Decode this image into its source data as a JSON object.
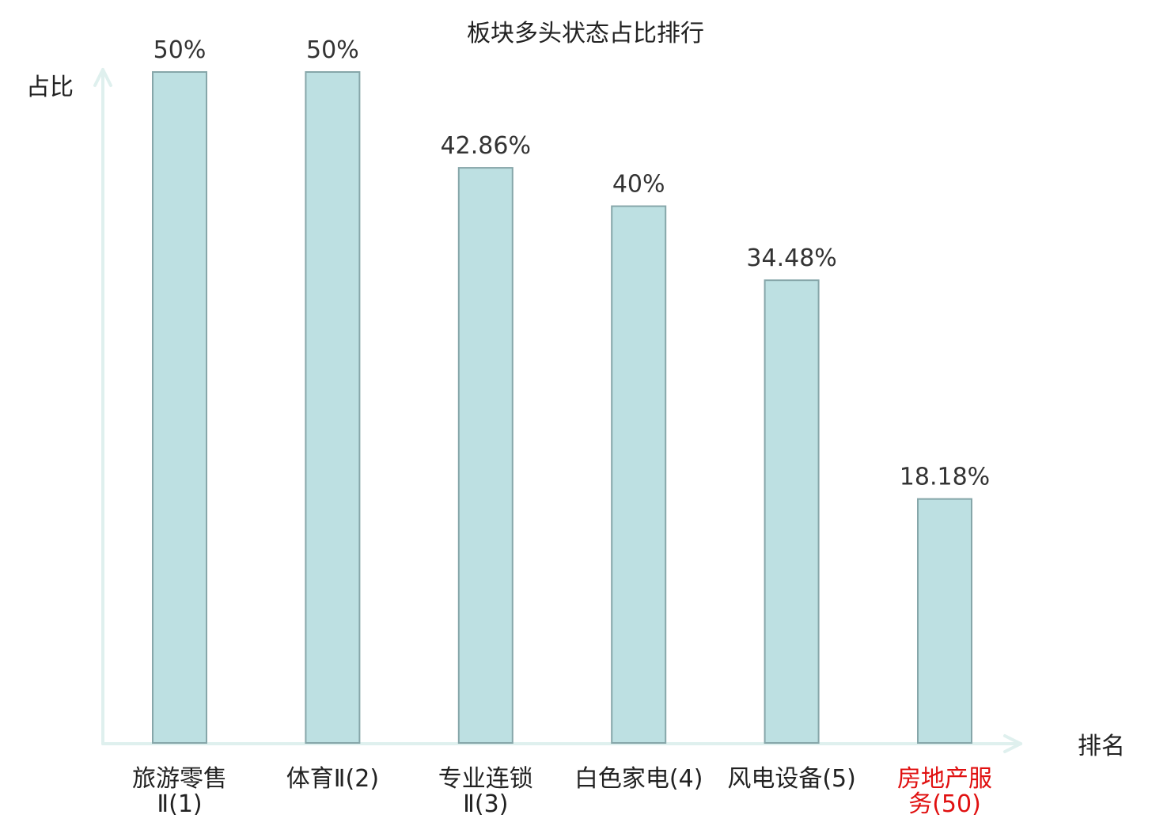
{
  "chart_data": {
    "type": "bar",
    "title": "板块多头状态占比排行",
    "ylabel": "占比",
    "xlabel": "排名",
    "categories": [
      [
        "旅游零售",
        "Ⅱ(1)"
      ],
      [
        "体育Ⅱ(2)"
      ],
      [
        "专业连锁",
        "Ⅱ(3)"
      ],
      [
        "白色家电(4)"
      ],
      [
        "风电设备(5)"
      ],
      [
        "房地产服",
        "务(50)"
      ]
    ],
    "values": [
      50,
      50,
      42.86,
      40,
      34.48,
      18.18
    ],
    "value_labels": [
      "50%",
      "50%",
      "42.86%",
      "40%",
      "34.48%",
      "18.18%"
    ],
    "highlight_index": 5,
    "ylim": [
      0,
      50
    ],
    "grid": false,
    "colors": {
      "bar_fill": "#bde0e2",
      "bar_stroke": "#86a6a9",
      "axis": "#dff0ee",
      "text": "#333333",
      "highlight_text": "#e01010"
    }
  }
}
